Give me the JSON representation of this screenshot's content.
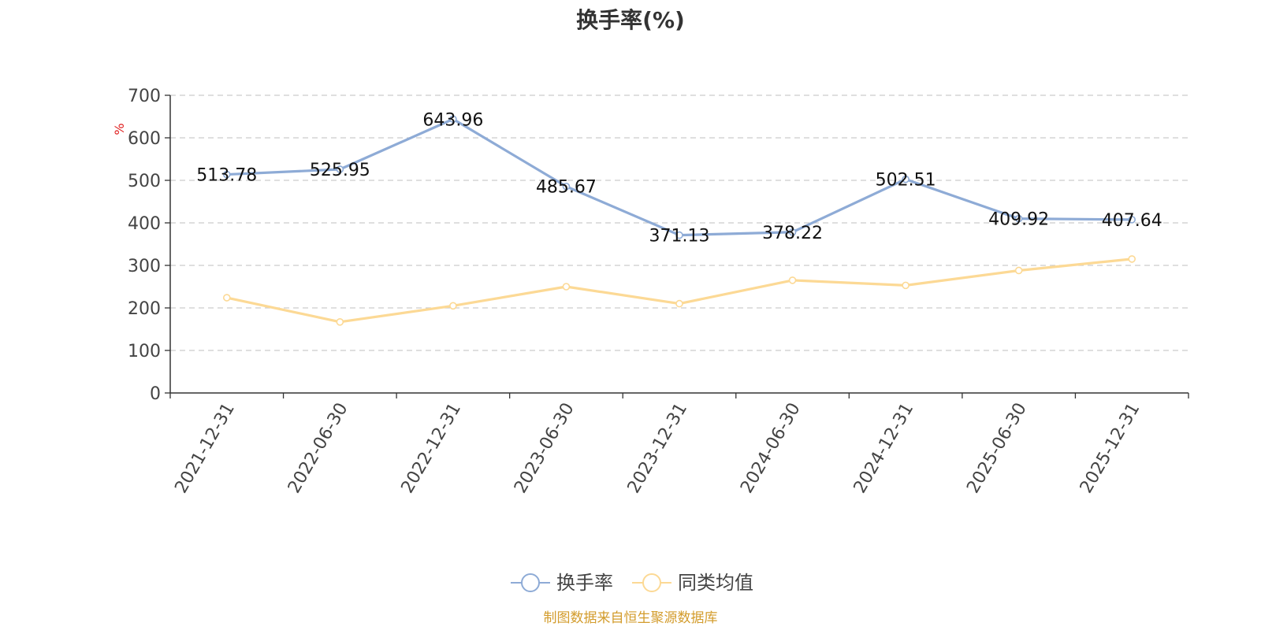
{
  "chart_data": {
    "type": "line",
    "title": "换手率(%)",
    "ylabel": "%",
    "xlabel": "",
    "ylim": [
      0,
      700
    ],
    "yticks": [
      0,
      100,
      200,
      300,
      400,
      500,
      600,
      700
    ],
    "grid": true,
    "legend_position": "bottom-center",
    "categories": [
      "2021-12-31",
      "2022-06-30",
      "2022-12-31",
      "2023-06-30",
      "2023-12-31",
      "2024-06-30",
      "2024-12-31",
      "2025-06-30",
      "2025-12-31"
    ],
    "series": [
      {
        "name": "换手率",
        "color": "#8eabd6",
        "values": [
          513.78,
          525.95,
          643.96,
          485.67,
          371.13,
          378.22,
          502.51,
          409.92,
          407.64
        ],
        "labels": [
          "513.78",
          "525.95",
          "643.96",
          "485.67",
          "371.13",
          "378.22",
          "502.51",
          "409.92",
          "407.64"
        ],
        "show_labels": true
      },
      {
        "name": "同类均值",
        "color": "#fcd995",
        "values": [
          224,
          167,
          205,
          250,
          210,
          265,
          253,
          288,
          315
        ],
        "show_labels": false
      }
    ]
  },
  "source_note": "制图数据来自恒生聚源数据库"
}
